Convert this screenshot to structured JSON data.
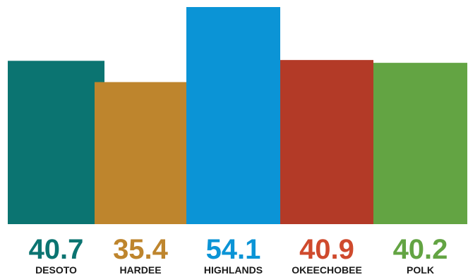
{
  "chart_data": {
    "type": "bar",
    "title": "",
    "xlabel": "",
    "ylabel": "",
    "ylim": [
      0,
      54.1
    ],
    "grid": false,
    "legend": "none",
    "categories": [
      "DESOTO",
      "HARDEE",
      "HIGHLANDS",
      "OKEECHOBEE",
      "POLK"
    ],
    "values": [
      40.7,
      35.4,
      54.1,
      40.9,
      40.2
    ],
    "value_labels": [
      "40.7",
      "35.4",
      "54.1",
      "40.9",
      "40.2"
    ],
    "colors": [
      "#0b7471",
      "#be852d",
      "#0b94d6",
      "#b33a27",
      "#63a443"
    ],
    "label_colors": [
      "#0b7471",
      "#be852d",
      "#0b94d6",
      "#cf4a2d",
      "#63a443"
    ]
  }
}
